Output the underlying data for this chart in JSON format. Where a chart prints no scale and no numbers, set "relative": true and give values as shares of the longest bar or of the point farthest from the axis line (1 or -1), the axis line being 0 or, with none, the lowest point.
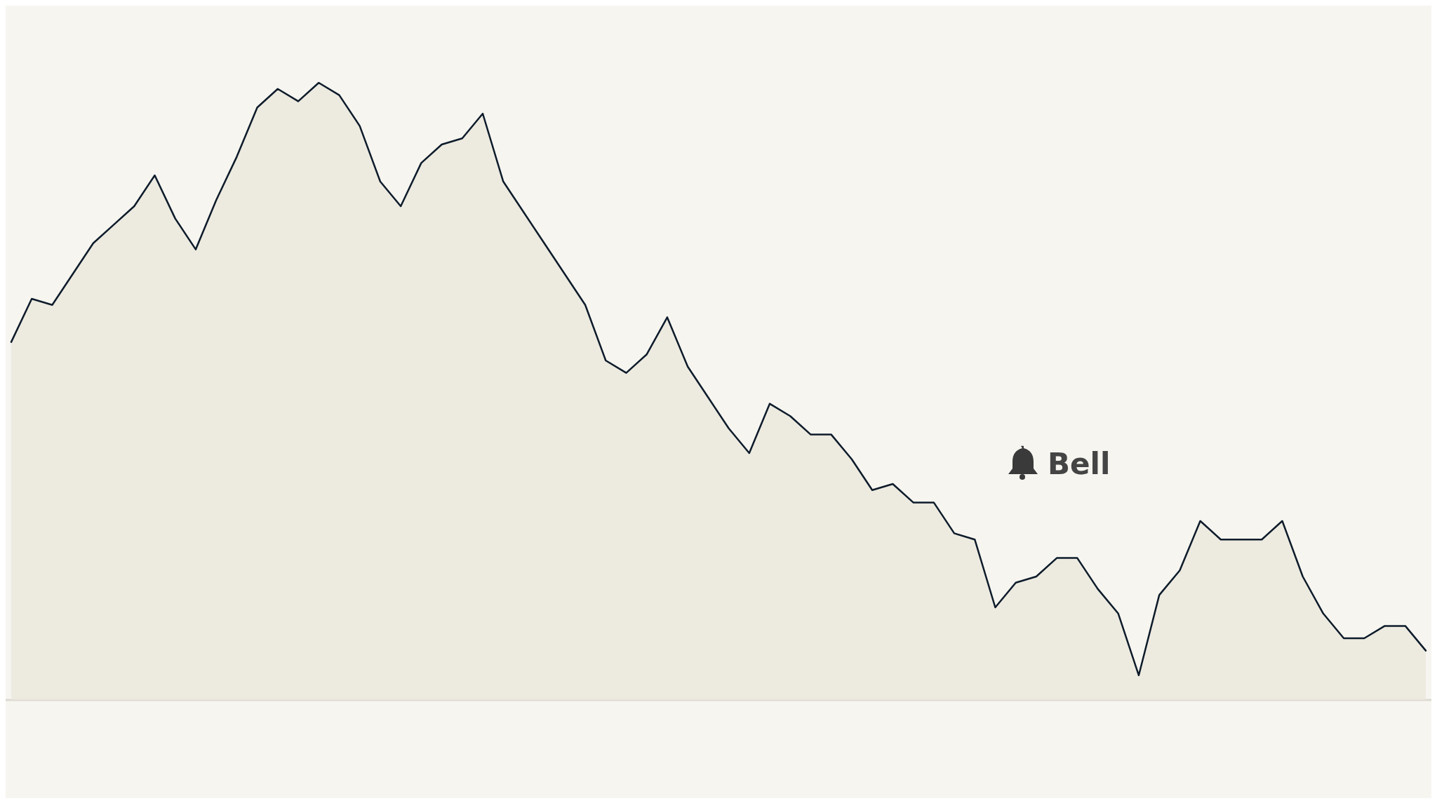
{
  "chart_data": {
    "type": "area",
    "relative": true,
    "categories": [
      null,
      null,
      null,
      null,
      null,
      null,
      null,
      null,
      null,
      null,
      null,
      null,
      null,
      null,
      null,
      null,
      null,
      null,
      null,
      null,
      null,
      null,
      null,
      null,
      null,
      null,
      null,
      null,
      null,
      null,
      null,
      null,
      null,
      null,
      null,
      null,
      null,
      null,
      null,
      null,
      null,
      null,
      null,
      null,
      null,
      null,
      null,
      null,
      null,
      null,
      null,
      null,
      null,
      null,
      null,
      null,
      null,
      null,
      null,
      null,
      null,
      null,
      null,
      null,
      null,
      null,
      null,
      null,
      null,
      null
    ],
    "series": [
      {
        "color": "#0d1b2a",
        "values": [
          0.58,
          0.65,
          0.64,
          0.69,
          0.74,
          0.77,
          0.8,
          0.85,
          0.78,
          0.73,
          0.81,
          0.88,
          0.96,
          0.99,
          0.97,
          1.0,
          0.98,
          0.93,
          0.84,
          0.8,
          0.87,
          0.9,
          0.91,
          0.95,
          0.84,
          0.79,
          0.74,
          0.69,
          0.64,
          0.55,
          0.53,
          0.56,
          0.62,
          0.54,
          0.49,
          0.44,
          0.4,
          0.48,
          0.46,
          0.43,
          0.43,
          0.39,
          0.34,
          0.35,
          0.32,
          0.32,
          0.27,
          0.26,
          0.15,
          0.19,
          0.2,
          0.23,
          0.23,
          0.18,
          0.14,
          0.04,
          0.17,
          0.21,
          0.29,
          0.26,
          0.26,
          0.26,
          0.29,
          0.2,
          0.14,
          0.1,
          0.1,
          0.12,
          0.12,
          0.08
        ]
      }
    ],
    "annotations": [
      "Bell"
    ]
  }
}
